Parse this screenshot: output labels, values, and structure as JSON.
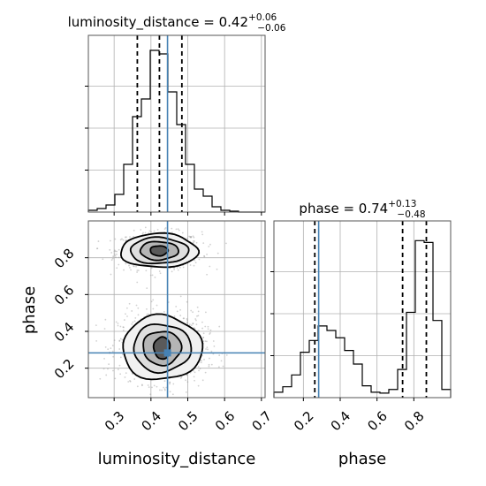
{
  "chart_data": {
    "type": "corner",
    "parameters": [
      "luminosity_distance",
      "phase"
    ],
    "truth": {
      "luminosity_distance": 0.445,
      "phase": 0.283
    },
    "titles": {
      "luminosity_distance": {
        "prefix": "luminosity_distance = 0.42",
        "plus": "+0.06",
        "minus": "−0.06"
      },
      "phase": {
        "prefix": "phase = 0.74",
        "plus": "+0.13",
        "minus": "−0.48"
      }
    },
    "axis_labels": {
      "x1": "luminosity_distance",
      "x2": "phase",
      "y": "phase"
    },
    "ld_range": [
      0.23,
      0.71
    ],
    "phase_range": [
      0.04,
      1.0
    ],
    "ld_ticks": [
      "0.3",
      "0.4",
      "0.5",
      "0.6",
      "0.7"
    ],
    "phase_x_ticks": [
      "0.2",
      "0.4",
      "0.6",
      "0.8"
    ],
    "phase_y_ticks": [
      "0.2",
      "0.4",
      "0.6",
      "0.8"
    ],
    "ld_hist": {
      "bin_edges": [
        0.23,
        0.254,
        0.278,
        0.302,
        0.326,
        0.35,
        0.374,
        0.398,
        0.422,
        0.446,
        0.47,
        0.494,
        0.518,
        0.542,
        0.566,
        0.59,
        0.614,
        0.638,
        0.662,
        0.686,
        0.71
      ],
      "counts": [
        2,
        4,
        8,
        20,
        54,
        108,
        128,
        183,
        179,
        136,
        99,
        54,
        26,
        18,
        6,
        2,
        1,
        0,
        0,
        0
      ],
      "ymax": 190,
      "quantiles": [
        0.363,
        0.423,
        0.484
      ]
    },
    "phase_hist": {
      "bin_edges": [
        0.04,
        0.088,
        0.136,
        0.184,
        0.232,
        0.28,
        0.328,
        0.376,
        0.424,
        0.472,
        0.52,
        0.568,
        0.616,
        0.664,
        0.712,
        0.76,
        0.808,
        0.856,
        0.904,
        0.952,
        1.0
      ],
      "counts": [
        6,
        12,
        25,
        50,
        63,
        79,
        74,
        66,
        52,
        37,
        13,
        6,
        5,
        9,
        31,
        94,
        173,
        171,
        85,
        9
      ],
      "ymax": 185,
      "quantiles": [
        0.262,
        0.739,
        0.868
      ]
    },
    "contours_2d": [
      {
        "mode": "upper",
        "center": [
          0.422,
          0.838
        ],
        "levels": [
          {
            "rx": 0.024,
            "ry": 0.027
          },
          {
            "rx": 0.052,
            "ry": 0.05
          },
          {
            "rx": 0.079,
            "ry": 0.071
          },
          {
            "rx": 0.105,
            "ry": 0.092
          }
        ]
      },
      {
        "mode": "lower",
        "center": [
          0.43,
          0.31
        ],
        "levels": [
          {
            "rx": 0.022,
            "ry": 0.06
          },
          {
            "rx": 0.052,
            "ry": 0.092
          },
          {
            "rx": 0.078,
            "ry": 0.13
          },
          {
            "rx": 0.108,
            "ry": 0.175
          }
        ]
      }
    ],
    "grid": true,
    "colors": {
      "hist": "#000000",
      "quantile": "#000000",
      "truth": "#4682b4",
      "contour": "#000000",
      "density": "#555555",
      "points": "#9a9a9a"
    }
  }
}
